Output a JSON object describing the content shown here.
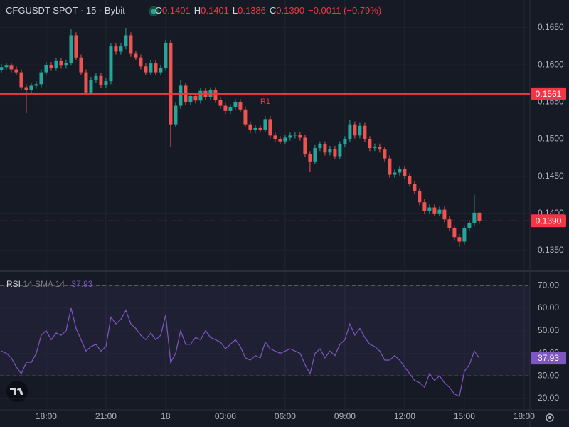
{
  "header": {
    "symbol": "CFGUSDT SPOT · 15 · Bybit",
    "ohlc": [
      {
        "label": "O",
        "value": "0.1401"
      },
      {
        "label": "H",
        "value": "0.1401"
      },
      {
        "label": "L",
        "value": "0.1386"
      },
      {
        "label": "C",
        "value": "0.1390"
      }
    ],
    "change": "−0.0011 (−0.79%)"
  },
  "chart_data": [
    {
      "type": "candlestick",
      "up_color": "#26a69a",
      "down_color": "#ef5350",
      "grid": true,
      "x": [
        15.75,
        16,
        16.25,
        16.5,
        16.75,
        17,
        17.25,
        17.5,
        17.75,
        18,
        18.25,
        18.5,
        18.75,
        19,
        19.25,
        19.5,
        19.75,
        20,
        20.25,
        20.5,
        20.75,
        21,
        21.25,
        21.5,
        21.75,
        22,
        22.25,
        22.5,
        22.75,
        23,
        23.25,
        23.5,
        23.75,
        24,
        24.25,
        24.5,
        24.75,
        25,
        25.25,
        25.5,
        25.75,
        26,
        26.25,
        26.5,
        26.75,
        27,
        27.25,
        27.5,
        27.75,
        28,
        28.25,
        28.5,
        28.75,
        29,
        29.25,
        29.5,
        29.75,
        30,
        30.25,
        30.5,
        30.75,
        31,
        31.25,
        31.5,
        31.75,
        32,
        32.25,
        32.5,
        32.75,
        33,
        33.25,
        33.5,
        33.75,
        34,
        34.25,
        34.5,
        34.75,
        35,
        35.25,
        35.5,
        35.75,
        36,
        36.25,
        36.5,
        36.75,
        37,
        37.25,
        37.5,
        37.75,
        38,
        38.25,
        38.5,
        38.75,
        39,
        39.25,
        39.5,
        39.75
      ],
      "open": [
        0.1593,
        0.1597,
        0.1599,
        0.1594,
        0.159,
        0.157,
        0.1566,
        0.1572,
        0.1574,
        0.159,
        0.16,
        0.1596,
        0.1605,
        0.1599,
        0.1603,
        0.164,
        0.161,
        0.159,
        0.1563,
        0.158,
        0.1585,
        0.1573,
        0.1578,
        0.1625,
        0.1618,
        0.1625,
        0.164,
        0.1615,
        0.161,
        0.1598,
        0.159,
        0.1602,
        0.159,
        0.1596,
        0.163,
        0.152,
        0.1545,
        0.1572,
        0.155,
        0.1558,
        0.1552,
        0.1565,
        0.1557,
        0.1566,
        0.1553,
        0.1545,
        0.1538,
        0.1543,
        0.155,
        0.154,
        0.152,
        0.1512,
        0.1515,
        0.1513,
        0.1527,
        0.1505,
        0.15,
        0.1497,
        0.1502,
        0.1505,
        0.1506,
        0.1502,
        0.148,
        0.147,
        0.1488,
        0.1493,
        0.1482,
        0.1487,
        0.1477,
        0.1493,
        0.15,
        0.152,
        0.1505,
        0.1518,
        0.15,
        0.1488,
        0.149,
        0.1486,
        0.1474,
        0.1452,
        0.1455,
        0.146,
        0.145,
        0.144,
        0.143,
        0.1415,
        0.1403,
        0.1408,
        0.14,
        0.1405,
        0.1392,
        0.138,
        0.1368,
        0.1362,
        0.138,
        0.1387,
        0.1401
      ],
      "high": [
        0.1601,
        0.1603,
        0.1603,
        0.1598,
        0.1594,
        0.1574,
        0.1576,
        0.1578,
        0.1594,
        0.1604,
        0.1604,
        0.1609,
        0.1609,
        0.1607,
        0.1648,
        0.1644,
        0.1614,
        0.1594,
        0.1584,
        0.1589,
        0.1589,
        0.1582,
        0.1629,
        0.1629,
        0.1629,
        0.165,
        0.1644,
        0.1619,
        0.1614,
        0.1602,
        0.1606,
        0.1606,
        0.16,
        0.1634,
        0.1634,
        0.1549,
        0.158,
        0.1576,
        0.1562,
        0.1562,
        0.1569,
        0.1569,
        0.157,
        0.157,
        0.1557,
        0.1549,
        0.1547,
        0.1554,
        0.1554,
        0.1544,
        0.1524,
        0.1519,
        0.1519,
        0.1531,
        0.1531,
        0.1509,
        0.1504,
        0.1506,
        0.1509,
        0.151,
        0.151,
        0.1506,
        0.1484,
        0.1492,
        0.1497,
        0.1497,
        0.1491,
        0.1491,
        0.1497,
        0.1504,
        0.1526,
        0.1524,
        0.1522,
        0.1522,
        0.1504,
        0.1494,
        0.1494,
        0.149,
        0.1478,
        0.1459,
        0.1464,
        0.1464,
        0.1454,
        0.1444,
        0.1434,
        0.1419,
        0.1412,
        0.1412,
        0.1409,
        0.1409,
        0.1396,
        0.1384,
        0.1372,
        0.1384,
        0.1391,
        0.1425,
        0.1401
      ],
      "low": [
        0.1589,
        0.1593,
        0.159,
        0.1586,
        0.1566,
        0.1535,
        0.1562,
        0.1568,
        0.157,
        0.1586,
        0.1592,
        0.1592,
        0.1595,
        0.1595,
        0.1599,
        0.1606,
        0.1586,
        0.1559,
        0.1559,
        0.1576,
        0.1569,
        0.1569,
        0.1574,
        0.1614,
        0.1614,
        0.1621,
        0.1611,
        0.1606,
        0.1594,
        0.1586,
        0.1586,
        0.1586,
        0.1586,
        0.1592,
        0.149,
        0.1516,
        0.1541,
        0.1546,
        0.1546,
        0.1548,
        0.1548,
        0.1553,
        0.1553,
        0.1549,
        0.1541,
        0.1534,
        0.1534,
        0.1539,
        0.1536,
        0.1516,
        0.1508,
        0.1508,
        0.1509,
        0.1509,
        0.1501,
        0.1496,
        0.1493,
        0.1493,
        0.1498,
        0.1501,
        0.1498,
        0.1476,
        0.1456,
        0.1466,
        0.1484,
        0.1478,
        0.1478,
        0.1473,
        0.1473,
        0.1489,
        0.1496,
        0.1501,
        0.1501,
        0.1496,
        0.1484,
        0.1484,
        0.1482,
        0.147,
        0.1448,
        0.1448,
        0.1451,
        0.1446,
        0.1436,
        0.1426,
        0.1411,
        0.1399,
        0.1399,
        0.1396,
        0.1396,
        0.1388,
        0.1376,
        0.1364,
        0.1355,
        0.1358,
        0.1376,
        0.1383,
        0.1386
      ],
      "close": [
        0.1597,
        0.1599,
        0.1594,
        0.159,
        0.157,
        0.1566,
        0.1572,
        0.1574,
        0.159,
        0.16,
        0.1596,
        0.1605,
        0.1599,
        0.1603,
        0.164,
        0.161,
        0.159,
        0.1563,
        0.158,
        0.1585,
        0.1573,
        0.1578,
        0.1625,
        0.1618,
        0.1625,
        0.164,
        0.1615,
        0.161,
        0.1598,
        0.159,
        0.1602,
        0.159,
        0.1596,
        0.163,
        0.152,
        0.1545,
        0.1572,
        0.155,
        0.1558,
        0.1552,
        0.1565,
        0.1557,
        0.1566,
        0.1553,
        0.1545,
        0.1538,
        0.1543,
        0.155,
        0.154,
        0.152,
        0.1512,
        0.1515,
        0.1513,
        0.1527,
        0.1505,
        0.15,
        0.1497,
        0.1502,
        0.1505,
        0.1506,
        0.1502,
        0.148,
        0.147,
        0.1488,
        0.1493,
        0.1482,
        0.1487,
        0.1477,
        0.1493,
        0.15,
        0.152,
        0.1505,
        0.1518,
        0.15,
        0.1488,
        0.149,
        0.1486,
        0.1474,
        0.1452,
        0.1455,
        0.146,
        0.145,
        0.144,
        0.143,
        0.1415,
        0.1403,
        0.1408,
        0.14,
        0.1405,
        0.1392,
        0.138,
        0.1368,
        0.1362,
        0.138,
        0.1387,
        0.1401,
        0.139
      ],
      "xlim": [
        15.68,
        42.29
      ],
      "xticks": [
        {
          "value": 18,
          "label": "18:00"
        },
        {
          "value": 21,
          "label": "21:00"
        },
        {
          "value": 24,
          "label": "18"
        },
        {
          "value": 27,
          "label": "03:00"
        },
        {
          "value": 30,
          "label": "06:00"
        },
        {
          "value": 33,
          "label": "09:00"
        },
        {
          "value": 36,
          "label": "12:00"
        },
        {
          "value": 39,
          "label": "15:00"
        },
        {
          "value": 42,
          "label": "18:00"
        }
      ],
      "ylim": [
        0.13232,
        0.16874
      ],
      "yticks": [
        {
          "value": 0.135,
          "label": "0.1350"
        },
        {
          "value": 0.14,
          "label": "0.1400"
        },
        {
          "value": 0.145,
          "label": "0.1450"
        },
        {
          "value": 0.15,
          "label": "0.1500"
        },
        {
          "value": 0.155,
          "label": "0.1550"
        },
        {
          "value": 0.16,
          "label": "0.1600"
        },
        {
          "value": 0.165,
          "label": "0.1650"
        }
      ],
      "levels": [
        {
          "name": "R1",
          "value": 0.1561,
          "color": "#f23645"
        }
      ],
      "price_line": {
        "value": 0.139,
        "label": "0.1390",
        "color": "#f23645"
      }
    },
    {
      "type": "line",
      "title": "RSI",
      "subtitle": "14 SMA 14",
      "color": "#7e57c2",
      "band_fill": "rgba(126,87,194,0.1)",
      "x": [
        15.75,
        16,
        16.25,
        16.5,
        16.75,
        17,
        17.25,
        17.5,
        17.75,
        18,
        18.25,
        18.5,
        18.75,
        19,
        19.25,
        19.5,
        19.75,
        20,
        20.25,
        20.5,
        20.75,
        21,
        21.25,
        21.5,
        21.75,
        22,
        22.25,
        22.5,
        22.75,
        23,
        23.25,
        23.5,
        23.75,
        24,
        24.25,
        24.5,
        24.75,
        25,
        25.25,
        25.5,
        25.75,
        26,
        26.25,
        26.5,
        26.75,
        27,
        27.25,
        27.5,
        27.75,
        28,
        28.25,
        28.5,
        28.75,
        29,
        29.25,
        29.5,
        29.75,
        30,
        30.25,
        30.5,
        30.75,
        31,
        31.25,
        31.5,
        31.75,
        32,
        32.25,
        32.5,
        32.75,
        33,
        33.25,
        33.5,
        33.75,
        34,
        34.25,
        34.5,
        34.75,
        35,
        35.25,
        35.5,
        35.75,
        36,
        36.25,
        36.5,
        36.75,
        37,
        37.25,
        37.5,
        37.75,
        38,
        38.25,
        38.5,
        38.75,
        39,
        39.25,
        39.5,
        39.75
      ],
      "values": [
        41,
        40,
        38,
        34,
        31,
        36,
        36,
        40,
        48,
        50,
        46,
        49,
        48,
        50,
        60,
        51,
        46,
        41,
        43,
        44,
        41,
        43,
        56,
        53,
        55,
        59,
        53,
        51,
        48,
        46,
        49,
        46,
        48,
        57,
        36,
        40,
        50,
        44,
        44,
        47,
        46,
        50,
        47,
        46,
        45,
        42,
        44,
        46,
        43,
        38,
        37,
        39,
        38,
        45,
        42,
        41,
        40,
        41,
        42,
        41,
        40,
        35,
        31,
        40,
        42,
        38,
        41,
        39,
        44,
        46,
        53,
        48,
        51,
        47,
        44,
        43,
        41,
        37,
        37,
        39,
        37,
        34,
        31,
        28,
        27,
        25,
        31,
        28,
        30,
        27,
        25,
        22,
        21,
        32,
        35,
        41,
        37.93
      ],
      "xlim": [
        15.68,
        42.29
      ],
      "ylim": [
        15.3,
        75.7
      ],
      "yticks": [
        {
          "value": 20,
          "label": "20.00"
        },
        {
          "value": 30,
          "label": "30.00"
        },
        {
          "value": 40,
          "label": "40.00"
        },
        {
          "value": 50,
          "label": "50.00"
        },
        {
          "value": 60,
          "label": "60.00"
        },
        {
          "value": 70,
          "label": "70.00"
        }
      ],
      "bands": [
        70,
        30
      ]
    }
  ]
}
